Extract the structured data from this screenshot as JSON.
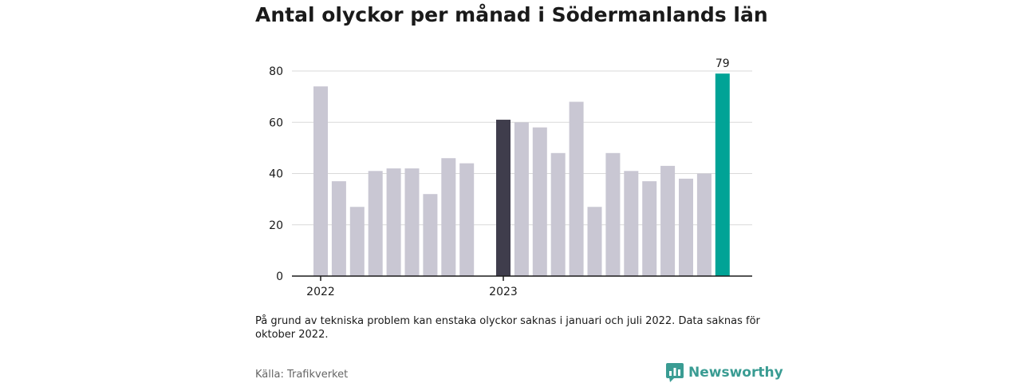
{
  "title": "Antal olyckor per månad i Södermanlands län",
  "chart_data": {
    "type": "bar",
    "ylim": [
      0,
      80
    ],
    "y_ticks": [
      0,
      20,
      40,
      60,
      80
    ],
    "x_tick_labels": [
      {
        "label": "2022",
        "slot": 0
      },
      {
        "label": "2023",
        "slot": 10
      }
    ],
    "slots": 23,
    "values": [
      74,
      37,
      27,
      41,
      42,
      42,
      32,
      46,
      44,
      null,
      61,
      60,
      58,
      48,
      68,
      27,
      48,
      41,
      37,
      43,
      38,
      40,
      79
    ],
    "highlight_index": 10,
    "last_index": 22,
    "data_labels": [
      {
        "index": 22,
        "label": "79"
      }
    ],
    "colors": {
      "default": "#c9c7d3",
      "highlight": "#3f3d4c",
      "last": "#00a396",
      "grid": "#d9d9d9",
      "axis": "#1a1a1a"
    },
    "grid": true
  },
  "note": "På grund av tekniska problem kan enstaka olyckor saknas i januari och juli 2022. Data saknas för oktober 2022.",
  "source": "Källa: Trafikverket",
  "brand": {
    "name": "Newsworthy",
    "icon": "bar-chart-speech-icon",
    "color": "#3a9c93"
  }
}
